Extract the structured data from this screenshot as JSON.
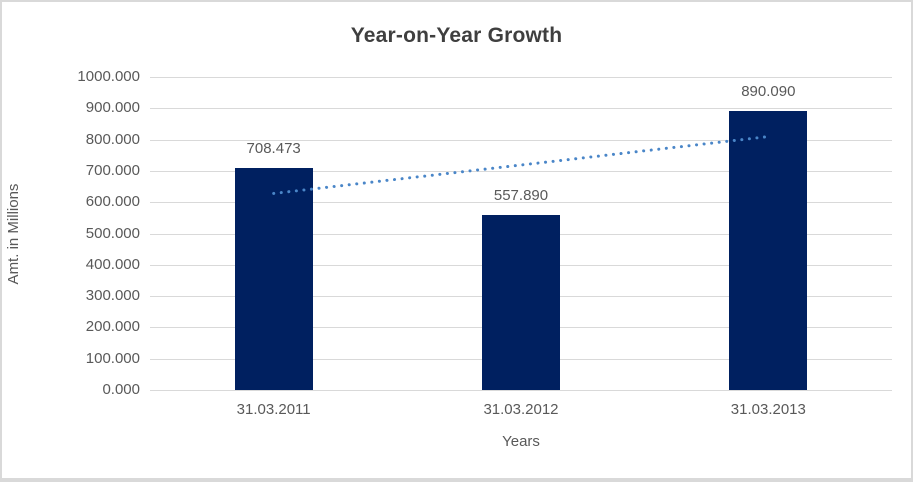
{
  "chart_data": {
    "type": "bar",
    "title": "Year-on-Year Growth",
    "xlabel": "Years",
    "ylabel": "Amt. in Millions",
    "categories": [
      "31.03.2011",
      "31.03.2012",
      "31.03.2013"
    ],
    "values": [
      708.473,
      557.89,
      890.09
    ],
    "data_labels": [
      "708.473",
      "557.890",
      "890.090"
    ],
    "ytick_labels": [
      "1000.000",
      "900.000",
      "800.000",
      "700.000",
      "600.000",
      "500.000",
      "400.000",
      "300.000",
      "200.000",
      "100.000",
      "0.000"
    ],
    "ylim": [
      0,
      1000
    ],
    "grid": true,
    "legend": false,
    "trendline": {
      "type": "linear",
      "style": "dotted",
      "fit_values": [
        628.0,
        718.8,
        809.6
      ]
    },
    "colors": {
      "bar": "#002060",
      "trendline": "#4A86C8",
      "gridline": "#D9D9D9",
      "title_text": "#3F3F3F",
      "axis_text": "#595959",
      "border": "#D9D9D9",
      "background": "#FFFFFF"
    }
  }
}
